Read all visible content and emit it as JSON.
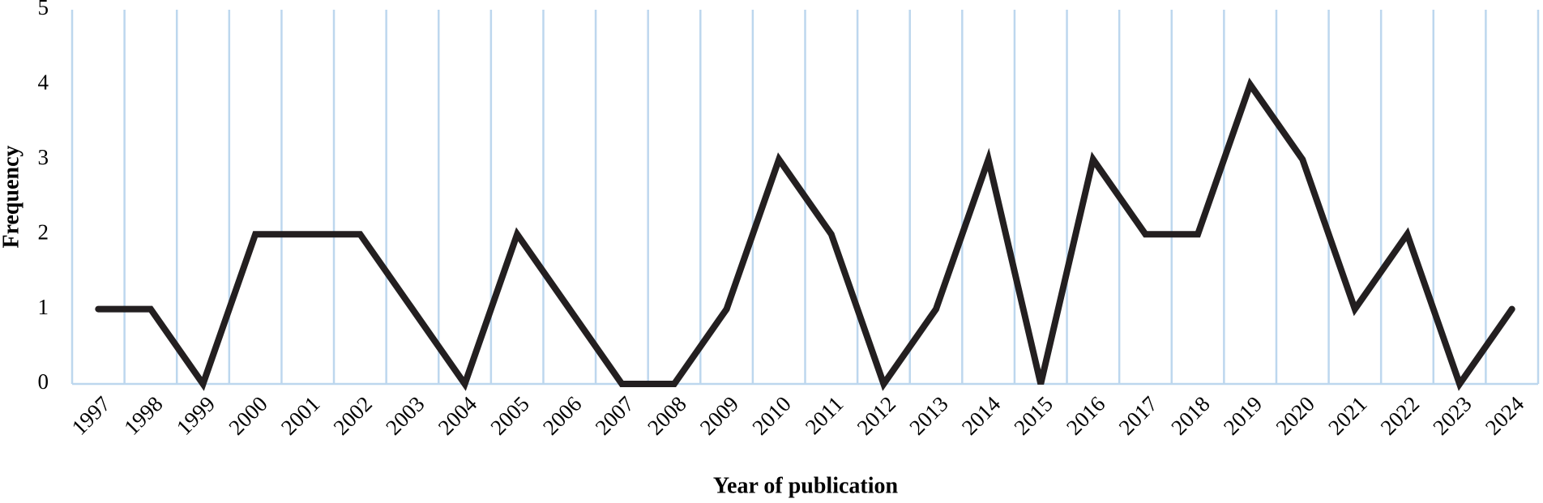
{
  "chart_data": {
    "type": "line",
    "x_label": "Year of publication",
    "y_label": "Frequency",
    "categories": [
      "1997",
      "1998",
      "1999",
      "2000",
      "2001",
      "2002",
      "2003",
      "2004",
      "2005",
      "2006",
      "2007",
      "2008",
      "2009",
      "2010",
      "2011",
      "2012",
      "2013",
      "2014",
      "2015",
      "2016",
      "2017",
      "2018",
      "2019",
      "2020",
      "2021",
      "2022",
      "2023",
      "2024"
    ],
    "values": [
      1,
      1,
      0,
      2,
      2,
      2,
      1,
      0,
      2,
      1,
      0,
      0,
      1,
      3,
      2,
      0,
      1,
      3,
      0,
      3,
      2,
      2,
      4,
      3,
      1,
      2,
      0,
      1
    ],
    "color": "#231f20",
    "ylim": [
      0,
      5
    ],
    "yticks": [
      0,
      1,
      2,
      3,
      4,
      5
    ],
    "grid": true,
    "grid_color": "#bdd7ee"
  }
}
